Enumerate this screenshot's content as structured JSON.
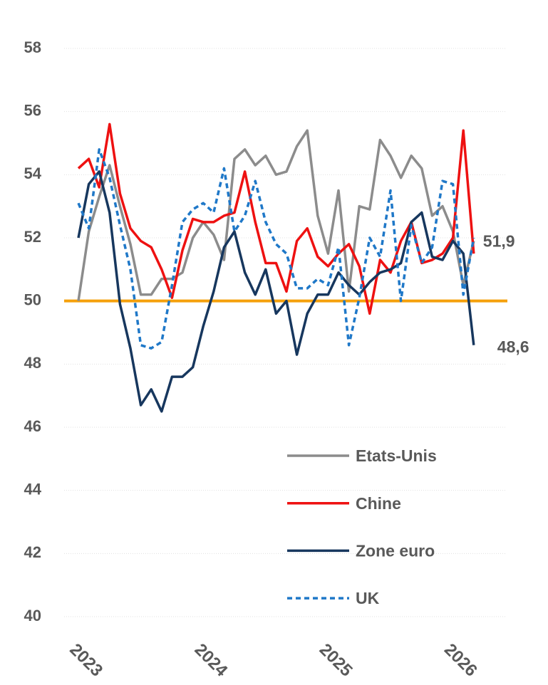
{
  "chart_data": {
    "type": "line",
    "categories": [
      "2023",
      null,
      null,
      null,
      null,
      null,
      null,
      null,
      null,
      null,
      null,
      null,
      "2024",
      null,
      null,
      null,
      null,
      null,
      null,
      null,
      null,
      null,
      null,
      null,
      "2025",
      null,
      null,
      null,
      null,
      null,
      null,
      null,
      null,
      null,
      null,
      null,
      "2026",
      null,
      null
    ],
    "series": [
      {
        "name": "Etats-Unis",
        "color": "#8c8c8c",
        "dash": false,
        "values": [
          50.0,
          52.2,
          53.3,
          54.3,
          53.0,
          51.8,
          50.2,
          50.2,
          50.7,
          50.7,
          50.9,
          52.0,
          52.5,
          52.1,
          51.3,
          54.5,
          54.8,
          54.3,
          54.6,
          54.0,
          54.1,
          54.9,
          55.4,
          52.7,
          51.5,
          53.5,
          50.3,
          53.0,
          52.9,
          55.1,
          54.6,
          53.9,
          54.6,
          54.2,
          52.7,
          53.0,
          52.2,
          50.5,
          51.9
        ],
        "value_labels": [
          null,
          null,
          null,
          null,
          null,
          null,
          null,
          null,
          null,
          null,
          null,
          null,
          null,
          null,
          null,
          null,
          null,
          null,
          null,
          null,
          null,
          null,
          null,
          null,
          null,
          null,
          null,
          null,
          null,
          null,
          null,
          null,
          null,
          null,
          null,
          null,
          null,
          null,
          "51,9"
        ]
      },
      {
        "name": "Chine",
        "color": "#ee1111",
        "dash": false,
        "values": [
          54.2,
          54.5,
          53.6,
          55.6,
          53.4,
          52.3,
          51.9,
          51.7,
          51.0,
          50.1,
          51.6,
          52.6,
          52.5,
          52.5,
          52.7,
          52.8,
          54.1,
          52.5,
          51.2,
          51.2,
          50.3,
          51.9,
          52.3,
          51.4,
          51.1,
          51.5,
          51.8,
          51.1,
          49.6,
          51.3,
          50.9,
          51.9,
          52.5,
          51.2,
          51.3,
          51.5,
          52.0,
          55.4,
          51.5
        ]
      },
      {
        "name": "Zone euro",
        "color": "#17375e",
        "dash": false,
        "values": [
          52.0,
          53.7,
          54.1,
          52.8,
          49.9,
          48.5,
          46.7,
          47.2,
          46.5,
          47.6,
          47.6,
          47.9,
          49.2,
          50.3,
          51.7,
          52.2,
          50.9,
          50.2,
          51.0,
          49.6,
          50.0,
          48.3,
          49.6,
          50.2,
          50.2,
          50.9,
          50.5,
          50.2,
          50.6,
          50.9,
          51.0,
          51.2,
          52.5,
          52.8,
          51.4,
          51.3,
          51.9,
          51.5,
          48.6
        ],
        "value_labels": [
          null,
          null,
          null,
          null,
          null,
          null,
          null,
          null,
          null,
          null,
          null,
          null,
          null,
          null,
          null,
          null,
          null,
          null,
          null,
          null,
          null,
          null,
          null,
          null,
          null,
          null,
          null,
          null,
          null,
          null,
          null,
          null,
          null,
          null,
          null,
          null,
          null,
          null,
          "48,6"
        ]
      },
      {
        "name": "UK",
        "color": "#1f78c8",
        "dash": true,
        "values": [
          53.1,
          52.3,
          54.8,
          53.9,
          52.4,
          51.0,
          48.6,
          48.5,
          48.7,
          50.5,
          52.5,
          52.9,
          53.1,
          52.8,
          54.2,
          52.2,
          52.7,
          53.8,
          52.5,
          51.8,
          51.5,
          50.4,
          50.4,
          50.7,
          50.5,
          51.7,
          48.6,
          50.1,
          52.0,
          51.4,
          53.5,
          50.0,
          52.4,
          51.2,
          51.7,
          53.8,
          53.7,
          50.2,
          52.0
        ]
      }
    ],
    "ylim": [
      40,
      58
    ],
    "yticks": [
      40,
      42,
      44,
      46,
      48,
      50,
      52,
      54,
      56,
      58
    ],
    "grid": true,
    "reference_line": {
      "value": 50,
      "color": "#f5a00b"
    },
    "legend": "bottom-right"
  }
}
